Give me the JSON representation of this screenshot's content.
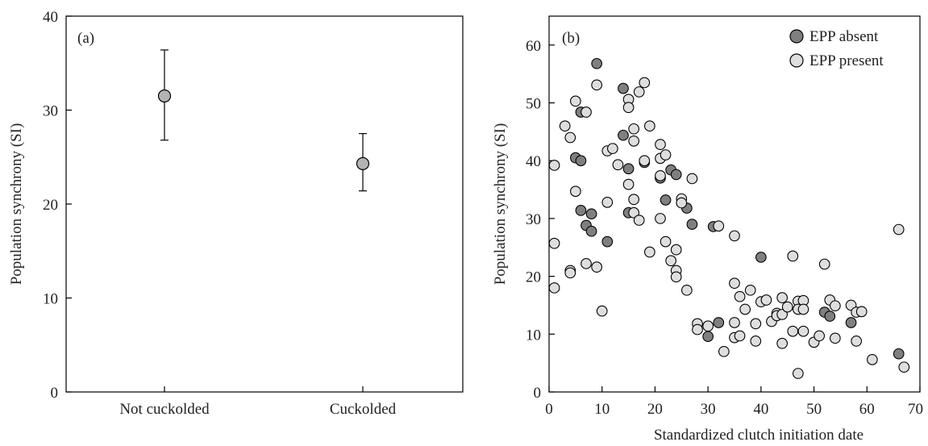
{
  "chart_data": [
    {
      "type": "scatter",
      "panel_label": "(a)",
      "xlabel": "",
      "ylabel": "Population synchrony (SI)",
      "ylim": [
        0,
        40
      ],
      "yticks": [
        0,
        10,
        20,
        30,
        40
      ],
      "categories": [
        "Not cuckolded",
        "Cuckolded"
      ],
      "series": [
        {
          "points": [
            {
              "category": "Not cuckolded",
              "mean": 31.5,
              "lower": 26.8,
              "upper": 36.4
            },
            {
              "category": "Cuckolded",
              "mean": 24.3,
              "lower": 21.4,
              "upper": 27.5
            }
          ]
        }
      ],
      "marker_color": "#b3b3b3"
    },
    {
      "type": "scatter",
      "panel_label": "(b)",
      "xlabel": "Standardized clutch initiation date",
      "ylabel": "Population synchrony (SI)",
      "xlim": [
        0,
        70
      ],
      "ylim": [
        0,
        65
      ],
      "xticks": [
        0,
        10,
        20,
        30,
        40,
        50,
        60,
        70
      ],
      "yticks": [
        0,
        10,
        20,
        30,
        40,
        50,
        60
      ],
      "legend_position": "top-right",
      "series": [
        {
          "name": "EPP absent",
          "color": "#7f7f7f",
          "points": [
            [
              9,
              56.8
            ],
            [
              14,
              52.5
            ],
            [
              6,
              48.4
            ],
            [
              14,
              44.4
            ],
            [
              5,
              40.5
            ],
            [
              6,
              40
            ],
            [
              15,
              38.6
            ],
            [
              18,
              39.7
            ],
            [
              21,
              37
            ],
            [
              22,
              33.2
            ],
            [
              6,
              31.4
            ],
            [
              8,
              30.8
            ],
            [
              15,
              31
            ],
            [
              23,
              38.4
            ],
            [
              24,
              37.6
            ],
            [
              26,
              31.8
            ],
            [
              27,
              29
            ],
            [
              7,
              28.8
            ],
            [
              8,
              27.8
            ],
            [
              11,
              26
            ],
            [
              31,
              28.6
            ],
            [
              40,
              23.3
            ],
            [
              30,
              9.6
            ],
            [
              32,
              12
            ],
            [
              52,
              13.8
            ],
            [
              53,
              13.1
            ],
            [
              57,
              12
            ],
            [
              66,
              6.6
            ]
          ]
        },
        {
          "name": "EPP present",
          "color": "#dedede",
          "points": [
            [
              1,
              39.2
            ],
            [
              1,
              25.7
            ],
            [
              1,
              18
            ],
            [
              3,
              46
            ],
            [
              4,
              44
            ],
            [
              4,
              21
            ],
            [
              4,
              20.6
            ],
            [
              5,
              50.3
            ],
            [
              5,
              34.7
            ],
            [
              7,
              48.4
            ],
            [
              7,
              22.2
            ],
            [
              9,
              53.1
            ],
            [
              9,
              21.6
            ],
            [
              10,
              14
            ],
            [
              11,
              41.7
            ],
            [
              11,
              32.8
            ],
            [
              12,
              42.1
            ],
            [
              13,
              39.3
            ],
            [
              15,
              50.6
            ],
            [
              15,
              49.2
            ],
            [
              15,
              35.9
            ],
            [
              16,
              45.5
            ],
            [
              16,
              43.4
            ],
            [
              16,
              33.3
            ],
            [
              16,
              31
            ],
            [
              17,
              51.9
            ],
            [
              17,
              29.7
            ],
            [
              18,
              53.5
            ],
            [
              18,
              40
            ],
            [
              19,
              46
            ],
            [
              19,
              24.2
            ],
            [
              21,
              42.8
            ],
            [
              21,
              40.4
            ],
            [
              21,
              37.4
            ],
            [
              21,
              30
            ],
            [
              22,
              41
            ],
            [
              22,
              26
            ],
            [
              23,
              22.7
            ],
            [
              24,
              24.6
            ],
            [
              24,
              21
            ],
            [
              24,
              19.9
            ],
            [
              25,
              33.4
            ],
            [
              25,
              32.7
            ],
            [
              26,
              17.6
            ],
            [
              27,
              36.9
            ],
            [
              28,
              11.8
            ],
            [
              28,
              10.8
            ],
            [
              30,
              11.4
            ],
            [
              32,
              28.7
            ],
            [
              33,
              7
            ],
            [
              35,
              27
            ],
            [
              35,
              18.8
            ],
            [
              35,
              12
            ],
            [
              35,
              9.4
            ],
            [
              36,
              16.5
            ],
            [
              36,
              9.7
            ],
            [
              37,
              14.3
            ],
            [
              38,
              17.6
            ],
            [
              39,
              11.8
            ],
            [
              39,
              8.8
            ],
            [
              40,
              15.6
            ],
            [
              41,
              15.9
            ],
            [
              42,
              12.2
            ],
            [
              43,
              13.6
            ],
            [
              43,
              13.2
            ],
            [
              44,
              16.3
            ],
            [
              44,
              13.4
            ],
            [
              44,
              8.4
            ],
            [
              45,
              14.7
            ],
            [
              46,
              23.5
            ],
            [
              46,
              10.5
            ],
            [
              47,
              15.7
            ],
            [
              47,
              14.3
            ],
            [
              47,
              3.2
            ],
            [
              48,
              15.8
            ],
            [
              48,
              14.3
            ],
            [
              48,
              10.5
            ],
            [
              50,
              8.6
            ],
            [
              51,
              9.7
            ],
            [
              52,
              22.1
            ],
            [
              53,
              15.9
            ],
            [
              54,
              14.9
            ],
            [
              54,
              9.3
            ],
            [
              57,
              15
            ],
            [
              58,
              13.8
            ],
            [
              58,
              8.8
            ],
            [
              59,
              13.9
            ],
            [
              61,
              5.6
            ],
            [
              66,
              28.1
            ],
            [
              67,
              4.3
            ]
          ]
        }
      ]
    }
  ]
}
